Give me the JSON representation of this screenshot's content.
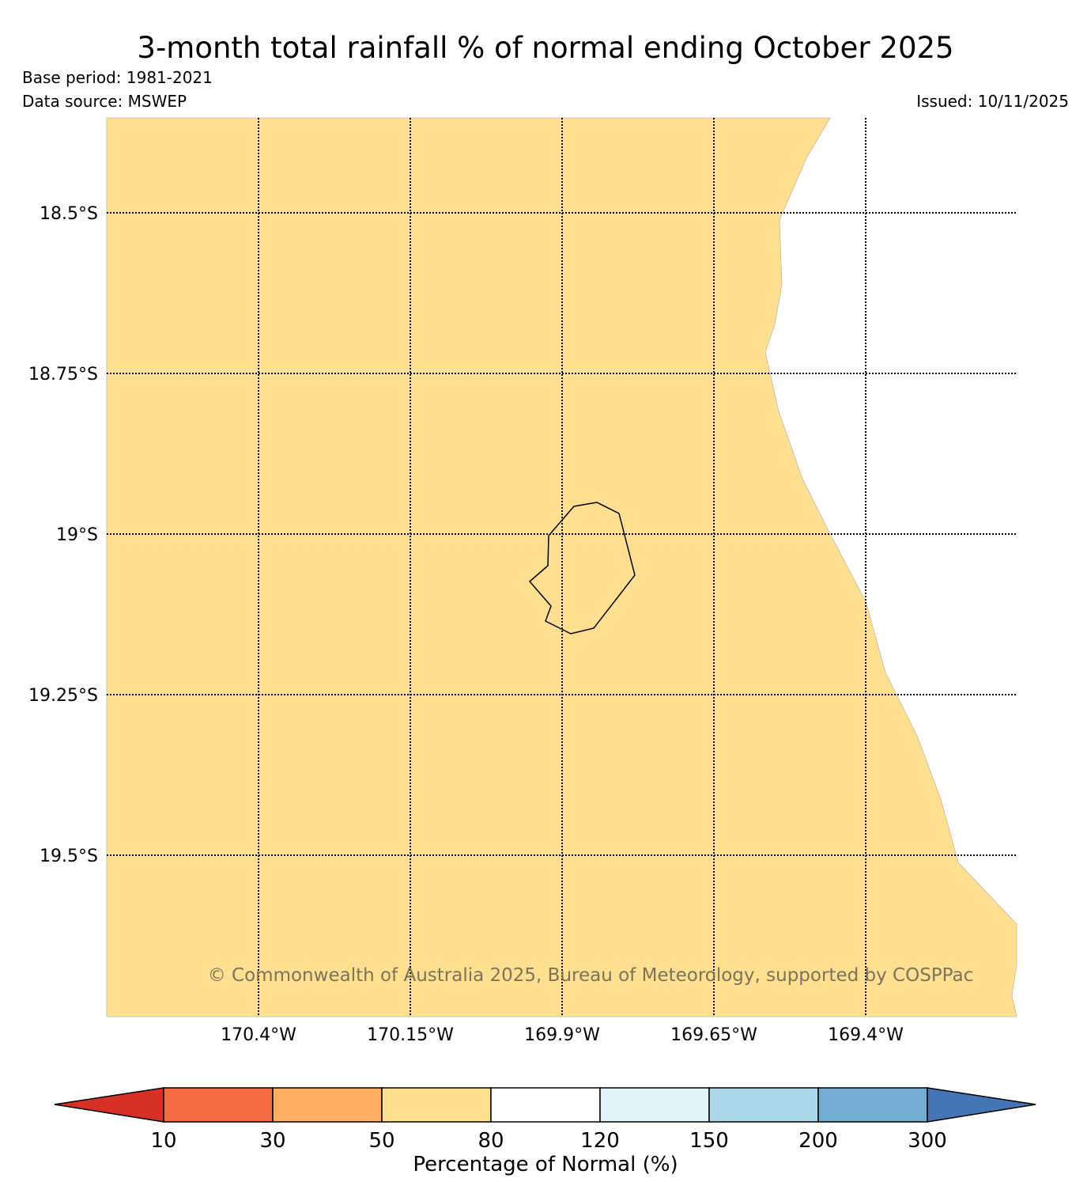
{
  "title": "3-month total rainfall % of normal ending October 2025",
  "base_period": "Base period: 1981-2021",
  "data_source": "Data source: MSWEP",
  "issued": "Issued: 10/11/2025",
  "copyright": "© Commonwealth of Australia 2025, Bureau of Meteorology, supported by COSPPac",
  "map": {
    "region_fill_color": "#fee090",
    "ocean_color": "#ffffff",
    "longitude_labels": [
      "170.4°W",
      "170.15°W",
      "169.9°W",
      "169.65°W",
      "169.4°W"
    ],
    "latitude_labels": [
      "18.5°S",
      "18.75°S",
      "19°S",
      "19.25°S",
      "19.5°S"
    ]
  },
  "colorbar": {
    "title": "Percentage of Normal (%)",
    "ticks": [
      "10",
      "30",
      "50",
      "80",
      "120",
      "150",
      "200",
      "300"
    ],
    "colors": [
      "#d73027",
      "#f46d43",
      "#fdae61",
      "#fee090",
      "#ffffff",
      "#e0f3f8",
      "#abd9e9",
      "#74add1",
      "#4575b4"
    ]
  }
}
